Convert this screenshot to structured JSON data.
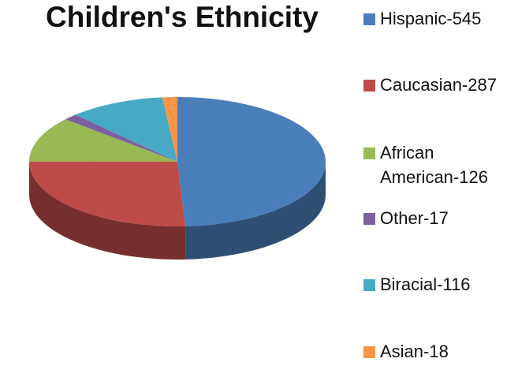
{
  "chart_data": {
    "type": "pie",
    "title": "Children's Ethnicity",
    "categories": [
      "Hispanic",
      "Caucasian",
      "African American",
      "Other",
      "Biracial",
      "Asian"
    ],
    "values": [
      545,
      287,
      126,
      17,
      116,
      18
    ],
    "legend_labels": [
      "Hispanic-545",
      "Caucasian-287",
      "African American-126",
      "Other-17",
      "Biracial-116",
      "Asian-18"
    ],
    "colors": [
      "#4a7ebb",
      "#be4b48",
      "#98b954",
      "#7d60a0",
      "#46aac5",
      "#f79646"
    ],
    "legend_position": "right",
    "style": "3d"
  }
}
